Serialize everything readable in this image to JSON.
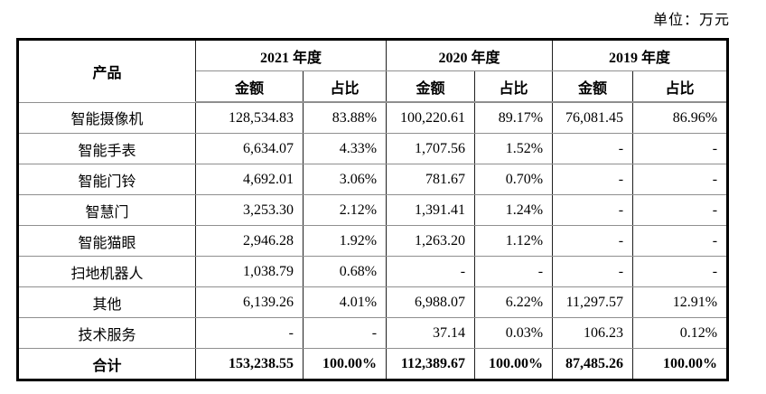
{
  "page": {
    "unit_label": "单位：万元"
  },
  "table": {
    "product_header": "产品",
    "year_groups": [
      {
        "year": "2021 年度",
        "amount_label": "金额",
        "share_label": "占比"
      },
      {
        "year": "2020 年度",
        "amount_label": "金额",
        "share_label": "占比"
      },
      {
        "year": "2019 年度",
        "amount_label": "金额",
        "share_label": "占比"
      }
    ],
    "rows": [
      {
        "product": "智能摄像机",
        "cells": [
          "128,534.83",
          "83.88%",
          "100,220.61",
          "89.17%",
          "76,081.45",
          "86.96%"
        ]
      },
      {
        "product": "智能手表",
        "cells": [
          "6,634.07",
          "4.33%",
          "1,707.56",
          "1.52%",
          "-",
          "-"
        ]
      },
      {
        "product": "智能门铃",
        "cells": [
          "4,692.01",
          "3.06%",
          "781.67",
          "0.70%",
          "-",
          "-"
        ]
      },
      {
        "product": "智慧门",
        "cells": [
          "3,253.30",
          "2.12%",
          "1,391.41",
          "1.24%",
          "-",
          "-"
        ]
      },
      {
        "product": "智能猫眼",
        "cells": [
          "2,946.28",
          "1.92%",
          "1,263.20",
          "1.12%",
          "-",
          "-"
        ]
      },
      {
        "product": "扫地机器人",
        "cells": [
          "1,038.79",
          "0.68%",
          "-",
          "-",
          "-",
          "-"
        ]
      },
      {
        "product": "其他",
        "cells": [
          "6,139.26",
          "4.01%",
          "6,988.07",
          "6.22%",
          "11,297.57",
          "12.91%"
        ]
      },
      {
        "product": "技术服务",
        "cells": [
          "-",
          "-",
          "37.14",
          "0.03%",
          "106.23",
          "0.12%"
        ]
      }
    ],
    "total_row": {
      "product": "合计",
      "cells": [
        "153,238.55",
        "100.00%",
        "112,389.67",
        "100.00%",
        "87,485.26",
        "100.00%"
      ]
    }
  }
}
